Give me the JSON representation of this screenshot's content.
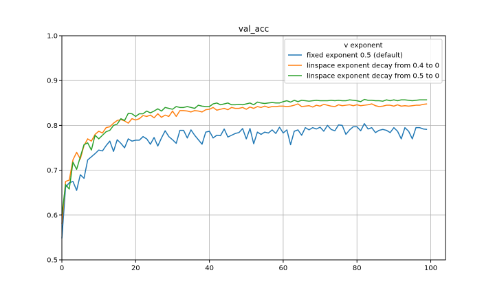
{
  "chart_data": {
    "type": "line",
    "title": "val_acc",
    "xlabel": "",
    "ylabel": "",
    "xlim": [
      0,
      104
    ],
    "ylim": [
      0.5,
      1.0
    ],
    "xticks": [
      0,
      20,
      40,
      60,
      80,
      100
    ],
    "yticks": [
      0.5,
      0.6,
      0.7,
      0.8,
      0.9,
      1.0
    ],
    "grid": true,
    "legend": {
      "title": "v exponent",
      "placement": "top-right"
    },
    "series": [
      {
        "name": "fixed exponent 0.5 (default)",
        "color": "#1f77b4",
        "x": [
          0,
          1,
          2,
          3,
          4,
          5,
          6,
          7,
          8,
          9,
          10,
          11,
          12,
          13,
          14,
          15,
          16,
          17,
          18,
          19,
          20,
          21,
          22,
          23,
          24,
          25,
          26,
          27,
          28,
          29,
          30,
          31,
          32,
          33,
          34,
          35,
          36,
          37,
          38,
          39,
          40,
          41,
          42,
          43,
          44,
          45,
          46,
          47,
          48,
          49,
          50,
          51,
          52,
          53,
          54,
          55,
          56,
          57,
          58,
          59,
          60,
          61,
          62,
          63,
          64,
          65,
          66,
          67,
          68,
          69,
          70,
          71,
          72,
          73,
          74,
          75,
          76,
          77,
          78,
          79,
          80,
          81,
          82,
          83,
          84,
          85,
          86,
          87,
          88,
          89,
          90,
          91,
          92,
          93,
          94,
          95,
          96,
          97,
          98,
          99
        ],
        "values": [
          0.548,
          0.662,
          0.672,
          0.675,
          0.655,
          0.69,
          0.682,
          0.723,
          0.73,
          0.737,
          0.745,
          0.743,
          0.755,
          0.765,
          0.742,
          0.768,
          0.76,
          0.75,
          0.77,
          0.765,
          0.767,
          0.767,
          0.775,
          0.77,
          0.758,
          0.773,
          0.754,
          0.772,
          0.788,
          0.775,
          0.768,
          0.76,
          0.789,
          0.789,
          0.772,
          0.79,
          0.778,
          0.768,
          0.758,
          0.785,
          0.787,
          0.772,
          0.778,
          0.777,
          0.792,
          0.774,
          0.778,
          0.782,
          0.784,
          0.793,
          0.77,
          0.793,
          0.759,
          0.785,
          0.78,
          0.785,
          0.783,
          0.79,
          0.782,
          0.796,
          0.783,
          0.79,
          0.757,
          0.787,
          0.79,
          0.778,
          0.795,
          0.79,
          0.795,
          0.792,
          0.796,
          0.787,
          0.8,
          0.791,
          0.788,
          0.801,
          0.8,
          0.78,
          0.79,
          0.797,
          0.797,
          0.788,
          0.804,
          0.792,
          0.795,
          0.784,
          0.789,
          0.791,
          0.789,
          0.784,
          0.795,
          0.787,
          0.77,
          0.795,
          0.787,
          0.77,
          0.795,
          0.795,
          0.792,
          0.791
        ]
      },
      {
        "name": "linspace exponent decay from 0.4 to 0",
        "color": "#ff7f0e",
        "x": [
          0,
          1,
          2,
          3,
          4,
          5,
          6,
          7,
          8,
          9,
          10,
          11,
          12,
          13,
          14,
          15,
          16,
          17,
          18,
          19,
          20,
          21,
          22,
          23,
          24,
          25,
          26,
          27,
          28,
          29,
          30,
          31,
          32,
          33,
          34,
          35,
          36,
          37,
          38,
          39,
          40,
          41,
          42,
          43,
          44,
          45,
          46,
          47,
          48,
          49,
          50,
          51,
          52,
          53,
          54,
          55,
          56,
          57,
          58,
          59,
          60,
          61,
          62,
          63,
          64,
          65,
          66,
          67,
          68,
          69,
          70,
          71,
          72,
          73,
          74,
          75,
          76,
          77,
          78,
          79,
          80,
          81,
          82,
          83,
          84,
          85,
          86,
          87,
          88,
          89,
          90,
          91,
          92,
          93,
          94,
          95,
          96,
          97,
          98,
          99
        ],
        "values": [
          0.58,
          0.675,
          0.678,
          0.723,
          0.74,
          0.725,
          0.755,
          0.77,
          0.765,
          0.78,
          0.787,
          0.783,
          0.795,
          0.797,
          0.805,
          0.811,
          0.813,
          0.81,
          0.805,
          0.815,
          0.812,
          0.815,
          0.822,
          0.82,
          0.823,
          0.817,
          0.826,
          0.818,
          0.823,
          0.82,
          0.832,
          0.82,
          0.833,
          0.833,
          0.832,
          0.83,
          0.833,
          0.832,
          0.83,
          0.835,
          0.836,
          0.84,
          0.834,
          0.836,
          0.838,
          0.835,
          0.84,
          0.838,
          0.838,
          0.84,
          0.836,
          0.841,
          0.838,
          0.842,
          0.84,
          0.843,
          0.84,
          0.842,
          0.842,
          0.843,
          0.843,
          0.842,
          0.843,
          0.845,
          0.848,
          0.842,
          0.843,
          0.844,
          0.841,
          0.845,
          0.843,
          0.847,
          0.845,
          0.843,
          0.842,
          0.846,
          0.844,
          0.845,
          0.846,
          0.844,
          0.846,
          0.844,
          0.845,
          0.846,
          0.848,
          0.844,
          0.842,
          0.843,
          0.845,
          0.845,
          0.843,
          0.846,
          0.843,
          0.844,
          0.843,
          0.844,
          0.845,
          0.845,
          0.847,
          0.848
        ]
      },
      {
        "name": "linspace exponent decay from 0.5 to 0",
        "color": "#2ca02c",
        "x": [
          0,
          1,
          2,
          3,
          4,
          5,
          6,
          7,
          8,
          9,
          10,
          11,
          12,
          13,
          14,
          15,
          16,
          17,
          18,
          19,
          20,
          21,
          22,
          23,
          24,
          25,
          26,
          27,
          28,
          29,
          30,
          31,
          32,
          33,
          34,
          35,
          36,
          37,
          38,
          39,
          40,
          41,
          42,
          43,
          44,
          45,
          46,
          47,
          48,
          49,
          50,
          51,
          52,
          53,
          54,
          55,
          56,
          57,
          58,
          59,
          60,
          61,
          62,
          63,
          64,
          65,
          66,
          67,
          68,
          69,
          70,
          71,
          72,
          73,
          74,
          75,
          76,
          77,
          78,
          79,
          80,
          81,
          82,
          83,
          84,
          85,
          86,
          87,
          88,
          89,
          90,
          91,
          92,
          93,
          94,
          95,
          96,
          97,
          98,
          99
        ],
        "values": [
          0.6,
          0.668,
          0.658,
          0.718,
          0.702,
          0.73,
          0.757,
          0.761,
          0.745,
          0.778,
          0.77,
          0.778,
          0.786,
          0.789,
          0.8,
          0.803,
          0.815,
          0.811,
          0.827,
          0.826,
          0.82,
          0.826,
          0.826,
          0.832,
          0.828,
          0.832,
          0.837,
          0.832,
          0.84,
          0.838,
          0.836,
          0.842,
          0.84,
          0.84,
          0.842,
          0.84,
          0.838,
          0.845,
          0.843,
          0.842,
          0.842,
          0.848,
          0.85,
          0.846,
          0.848,
          0.85,
          0.846,
          0.846,
          0.847,
          0.846,
          0.848,
          0.85,
          0.846,
          0.852,
          0.85,
          0.849,
          0.85,
          0.851,
          0.85,
          0.85,
          0.853,
          0.855,
          0.852,
          0.856,
          0.853,
          0.856,
          0.855,
          0.854,
          0.855,
          0.856,
          0.855,
          0.855,
          0.855,
          0.856,
          0.855,
          0.856,
          0.855,
          0.855,
          0.857,
          0.856,
          0.855,
          0.853,
          0.858,
          0.856,
          0.856,
          0.855,
          0.855,
          0.854,
          0.857,
          0.855,
          0.857,
          0.855,
          0.857,
          0.857,
          0.856,
          0.855,
          0.856,
          0.857,
          0.857,
          0.857
        ]
      }
    ]
  }
}
